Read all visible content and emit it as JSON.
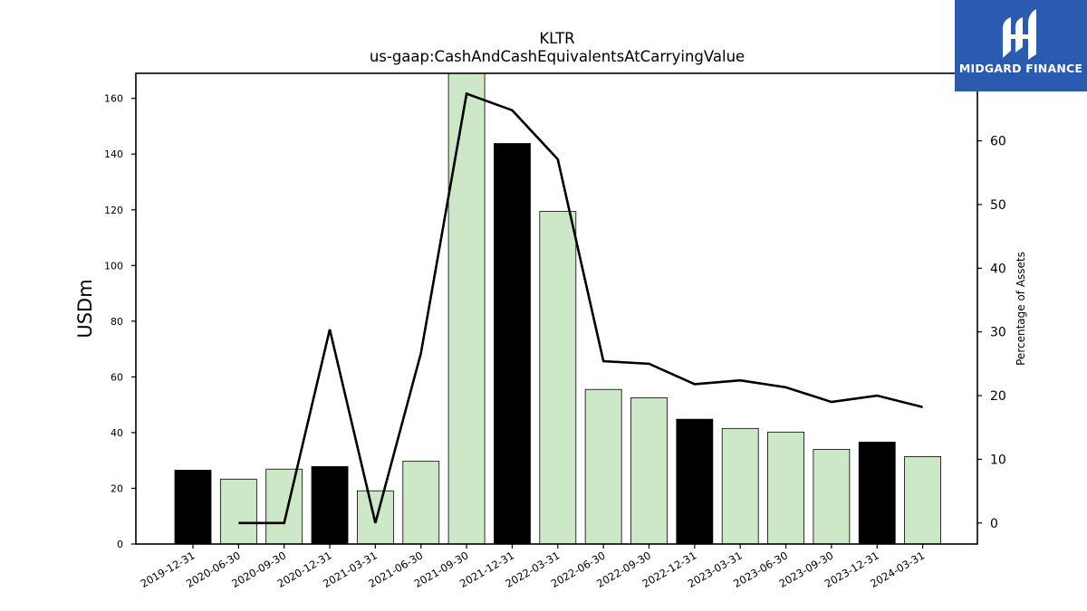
{
  "logo": {
    "brand": "MIDGARD FINANCE",
    "icon": "midgard-logo-icon",
    "background": "#2a5bb0"
  },
  "chart_data": {
    "type": "bar",
    "title": "KLTR",
    "subtitle": "us-gaap:CashAndCashEquivalentsAtCarryingValue",
    "ylabel": "USDm",
    "y2label": "Percentage of Assets",
    "ylim": [
      0,
      169
    ],
    "y2lim": [
      -3.3,
      70.6
    ],
    "yticks": [
      0,
      20,
      40,
      60,
      80,
      100,
      120,
      140,
      160
    ],
    "y2ticks": [
      0,
      10,
      20,
      30,
      40,
      50,
      60
    ],
    "categories": [
      "2019-12-31",
      "2020-06-30",
      "2020-09-30",
      "2020-12-31",
      "2021-03-31",
      "2021-06-30",
      "2021-09-30",
      "2021-12-31",
      "2022-03-31",
      "2022-06-30",
      "2022-09-30",
      "2022-12-31",
      "2023-03-31",
      "2023-06-30",
      "2023-09-30",
      "2023-12-31",
      "2024-03-31"
    ],
    "series": [
      {
        "type": "bar",
        "values": [
          26.5,
          23.3,
          26.9,
          27.8,
          19.1,
          29.7,
          169.0,
          143.8,
          119.4,
          55.5,
          52.5,
          44.8,
          41.5,
          40.2,
          34.0,
          36.6,
          31.4
        ]
      },
      {
        "type": "line",
        "axis": "right",
        "values": [
          null,
          0.0,
          0.0,
          30.4,
          0.0,
          26.7,
          67.4,
          64.8,
          57.1,
          25.4,
          25.0,
          21.8,
          22.4,
          21.3,
          19.0,
          20.0,
          18.2
        ]
      }
    ],
    "bar_colors": [
      "#000000",
      "#cde8c6",
      "#cde8c6",
      "#000000",
      "#cde8c6",
      "#cde8c6",
      "#cde8c6",
      "#000000",
      "#cde8c6",
      "#cde8c6",
      "#cde8c6",
      "#000000",
      "#cde8c6",
      "#cde8c6",
      "#cde8c6",
      "#000000",
      "#cde8c6"
    ],
    "line_color": "#000000",
    "grid": false,
    "legend": "none"
  }
}
